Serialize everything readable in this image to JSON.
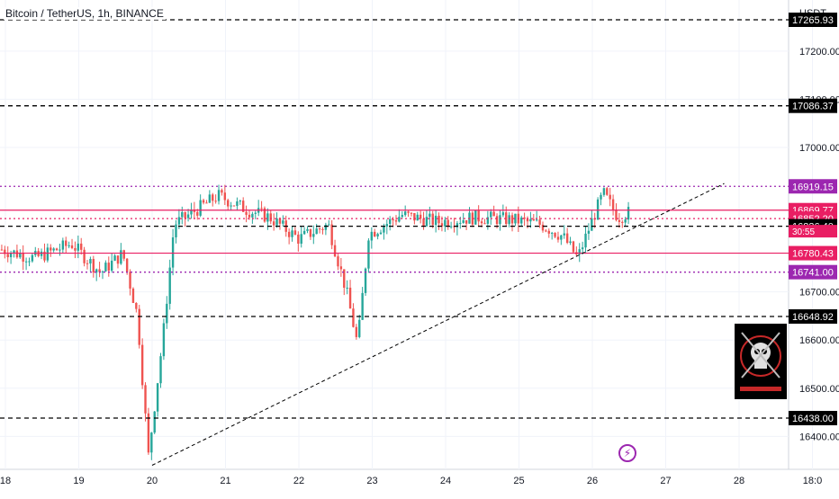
{
  "header": {
    "title": "Bitcoin / TetherUS, 1h, BINANCE",
    "currency": "USDT"
  },
  "colors": {
    "up": "#26a69a",
    "down": "#ef5350",
    "dashed_line": "#000000",
    "purple": "#9c27b0",
    "red_line": "#e91e63",
    "axis_text": "#131722",
    "grid": "#f0f3fa"
  },
  "icons": [
    "skull-logo-icon",
    "lightning-bolt-icon"
  ],
  "chart_data": {
    "type": "candlestick",
    "x_ticks": [
      "18",
      "19",
      "20",
      "21",
      "22",
      "23",
      "24",
      "25",
      "26",
      "27",
      "28",
      "18:0"
    ],
    "y_ticks": [
      "17200.00",
      "17100.00",
      "17000.00",
      "16700.00",
      "16600.00",
      "16500.00",
      "16400.00"
    ],
    "y_range": [
      16340,
      17250
    ],
    "horizontal_levels": [
      {
        "price": 17265,
        "style": "dashed",
        "color": "#000000",
        "label": "17265.93"
      },
      {
        "price": 17086.37,
        "style": "dashed",
        "color": "#000000",
        "label": "17086.37"
      },
      {
        "price": 16919.15,
        "style": "dotted",
        "color": "#9c27b0",
        "label": "16919.15"
      },
      {
        "price": 16869.77,
        "style": "solid",
        "color": "#e91e63",
        "label": "16869.77"
      },
      {
        "price": 16852.2,
        "style": "dotted",
        "color": "#e91e63",
        "label": "16852.20"
      },
      {
        "price": 16836.4,
        "style": "dashed",
        "color": "#000000",
        "label": "16836.40"
      },
      {
        "price": 16780.43,
        "style": "solid",
        "color": "#e91e63",
        "label": "16780.43"
      },
      {
        "price": 16741.0,
        "style": "dotted",
        "color": "#9c27b0",
        "label": "16741.00"
      },
      {
        "price": 16648.92,
        "style": "dashed",
        "color": "#000000",
        "label": "16648.92"
      },
      {
        "price": 16438.0,
        "style": "dashed",
        "color": "#000000",
        "label": "16438.00"
      }
    ],
    "countdown": "30:55",
    "trendline": {
      "from": {
        "x": "20",
        "price": 16340
      },
      "to": {
        "x": "27",
        "price": 16925
      },
      "style": "dashed"
    },
    "price_path": [
      [
        17.9,
        16790
      ],
      [
        18.4,
        16770
      ],
      [
        18.9,
        16800
      ],
      [
        19.3,
        16740
      ],
      [
        19.6,
        16780
      ],
      [
        19.8,
        16650
      ],
      [
        19.95,
        16360
      ],
      [
        20.15,
        16610
      ],
      [
        20.3,
        16840
      ],
      [
        20.6,
        16870
      ],
      [
        20.9,
        16900
      ],
      [
        21.3,
        16870
      ],
      [
        21.6,
        16855
      ],
      [
        22.0,
        16810
      ],
      [
        22.4,
        16840
      ],
      [
        22.65,
        16700
      ],
      [
        22.8,
        16590
      ],
      [
        22.95,
        16820
      ],
      [
        23.4,
        16860
      ],
      [
        23.9,
        16845
      ],
      [
        24.4,
        16855
      ],
      [
        24.9,
        16850
      ],
      [
        25.3,
        16840
      ],
      [
        25.6,
        16815
      ],
      [
        25.8,
        16770
      ],
      [
        26.0,
        16850
      ],
      [
        26.15,
        16905
      ],
      [
        26.35,
        16855
      ],
      [
        26.5,
        16865
      ]
    ]
  }
}
